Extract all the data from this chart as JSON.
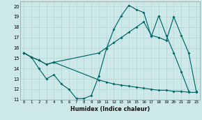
{
  "xlabel": "Humidex (Indice chaleur)",
  "bg_color": "#cce8e8",
  "grid_color": "#b0d4d4",
  "line_color": "#006666",
  "xlim_min": -0.5,
  "xlim_max": 23.5,
  "ylim_min": 11,
  "ylim_max": 20.5,
  "xtick_vals": [
    0,
    1,
    2,
    3,
    4,
    5,
    6,
    7,
    8,
    9,
    10,
    11,
    12,
    13,
    14,
    15,
    16,
    17,
    18,
    19,
    20,
    21,
    22,
    23
  ],
  "ytick_vals": [
    11,
    12,
    13,
    14,
    15,
    16,
    17,
    18,
    19,
    20
  ],
  "line1_x": [
    0,
    1,
    2,
    3,
    4,
    5,
    6,
    7,
    8,
    9,
    10,
    11,
    12,
    13,
    14,
    15,
    16,
    17,
    18,
    19,
    20,
    21,
    22
  ],
  "line1_y": [
    15.5,
    15.1,
    14.0,
    13.0,
    13.4,
    12.5,
    12.0,
    11.1,
    11.1,
    11.4,
    13.3,
    15.9,
    17.8,
    19.1,
    20.1,
    19.7,
    19.4,
    17.1,
    19.1,
    17.2,
    15.5,
    13.7,
    11.8
  ],
  "line2_x": [
    0,
    1,
    2,
    3,
    4,
    10,
    11,
    12,
    13,
    14,
    15,
    16,
    17,
    18,
    19,
    20,
    21,
    22,
    23
  ],
  "line2_y": [
    15.5,
    15.1,
    14.8,
    14.4,
    14.6,
    15.5,
    16.0,
    16.5,
    17.0,
    17.5,
    18.0,
    18.5,
    17.2,
    17.0,
    16.7,
    19.0,
    17.2,
    15.5,
    11.8
  ],
  "line3_x": [
    0,
    1,
    2,
    3,
    4,
    10,
    11,
    12,
    13,
    14,
    15,
    16,
    17,
    18,
    19,
    20,
    21,
    22,
    23
  ],
  "line3_y": [
    15.5,
    15.1,
    14.8,
    14.4,
    14.6,
    12.9,
    12.7,
    12.5,
    12.4,
    12.3,
    12.2,
    12.1,
    12.0,
    11.9,
    11.9,
    11.8,
    11.8,
    11.7,
    11.7
  ]
}
